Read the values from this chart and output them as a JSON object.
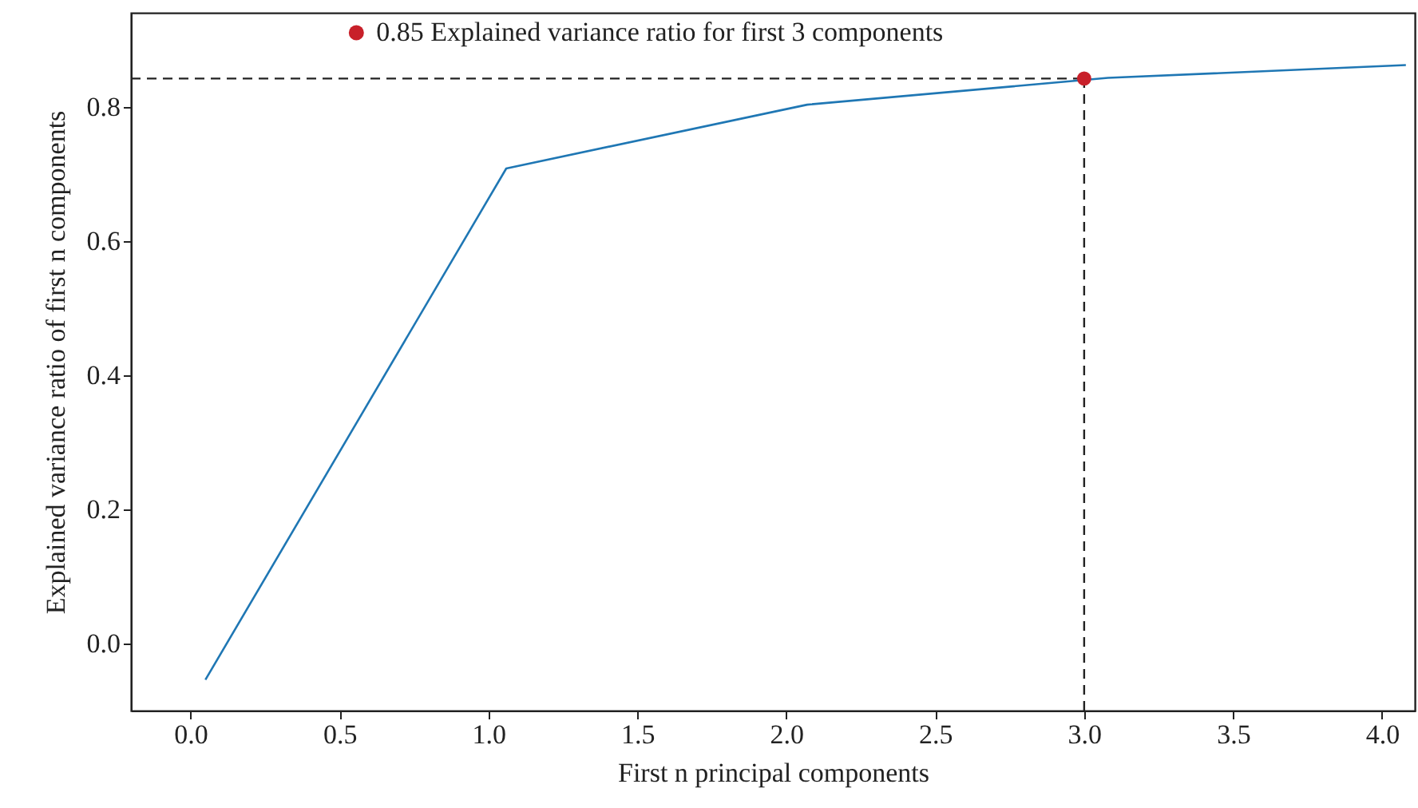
{
  "chart_data": {
    "type": "line",
    "xlabel": "First n principal components",
    "ylabel": "Explained variance ratio of first n components",
    "xlim": [
      -0.2,
      4.11
    ],
    "ylim": [
      -0.1,
      0.94
    ],
    "xticks": [
      {
        "value": 0,
        "label": "0.0"
      },
      0.5,
      {
        "value": 1,
        "label": "1.0"
      },
      1.5,
      {
        "value": 2,
        "label": "2.0"
      },
      2.5,
      {
        "value": 3,
        "label": "3.0"
      },
      3.5,
      {
        "value": 4,
        "label": "4.0"
      }
    ],
    "yticks": [
      {
        "value": 0,
        "label": "0.0"
      },
      0.2,
      0.4,
      0.6,
      0.8
    ],
    "series": [
      {
        "color": "#1f77b4",
        "x": [
          0.05,
          1.06,
          2.07,
          3.08,
          4.08
        ],
        "values": [
          -0.054,
          0.708,
          0.803,
          0.843,
          0.862
        ]
      },
      {
        "type": "scatter",
        "marker": "circle",
        "name": "0.85 Explained variance ratio for first 3 components",
        "color": "#c8202a",
        "x": [
          3.0
        ],
        "values": [
          0.842
        ]
      }
    ],
    "ref_lines": [
      {
        "axis": "y",
        "value": 0.842,
        "color": "#222222",
        "line_style": "dashed"
      },
      {
        "axis": "x",
        "value": 3.0,
        "color": "#222222",
        "line_style": "dashed"
      }
    ],
    "legend": "top",
    "grid": false,
    "marker": "none",
    "line_style": "solid"
  }
}
